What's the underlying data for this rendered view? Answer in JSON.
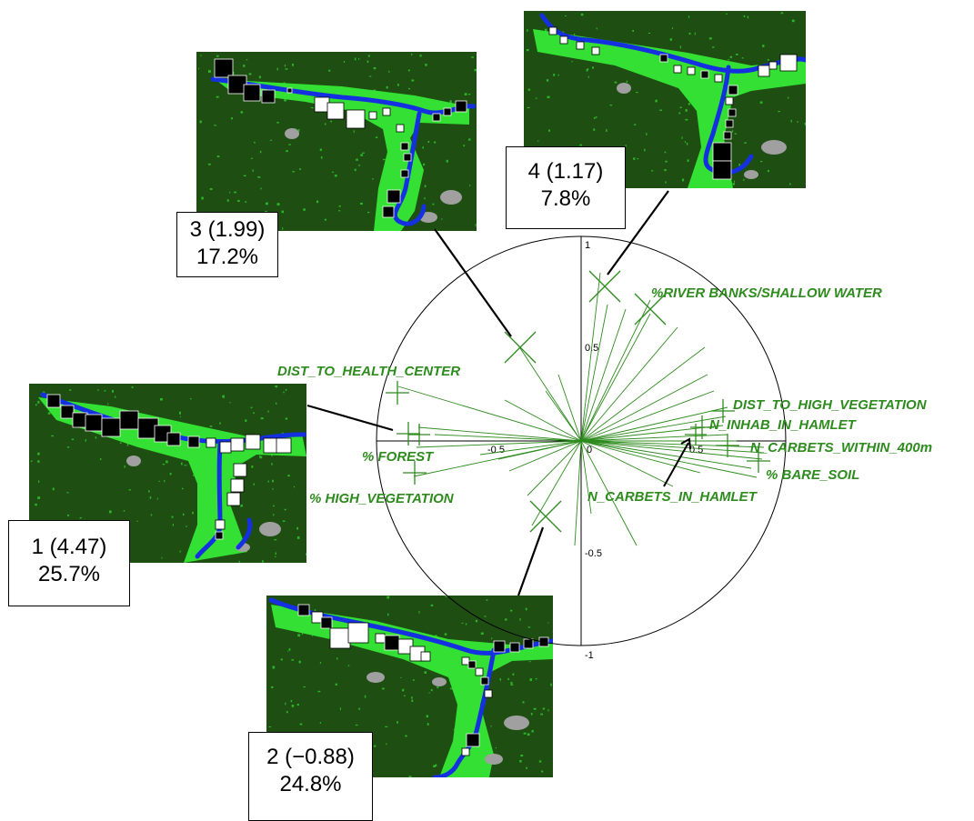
{
  "circle": {
    "axis_labels": {
      "x_neg": "-0.5",
      "x_zero": "0",
      "x_pos": "0.5",
      "y_top": "1",
      "y_pos": "0.5",
      "y_neg": "-0.5",
      "y_bottom": "-1"
    },
    "variables": [
      {
        "name": "%RIVER BANKS/SHALLOW WATER"
      },
      {
        "name": "DIST_TO_HEALTH_CENTER"
      },
      {
        "name": "% FOREST"
      },
      {
        "name": "% HIGH_VEGETATION"
      },
      {
        "name": "DIST_TO_HIGH_VEGETATION"
      },
      {
        "name": "N_INHAB_IN_HAMLET"
      },
      {
        "name": "N_CARBETS_WITHIN_400m"
      },
      {
        "name": "% BARE_SOIL"
      },
      {
        "name": "N_CARBETS_IN_HAMLET"
      }
    ]
  },
  "clusters": [
    {
      "id": "c3",
      "line1": "3 (1.99)",
      "line2": "17.2%"
    },
    {
      "id": "c4",
      "line1": "4 (1.17)",
      "line2": "7.8%"
    },
    {
      "id": "c1",
      "line1": "1 (4.47)",
      "line2": "25.7%"
    },
    {
      "id": "c2",
      "line1": "2 (−0.88)",
      "line2": "24.8%"
    }
  ],
  "colors": {
    "forest": "#1e4e12",
    "vegetation": "#33e033",
    "river": "#1430e0",
    "variables": "#2e8b1e",
    "bare_soil": "#a0a0a0"
  }
}
